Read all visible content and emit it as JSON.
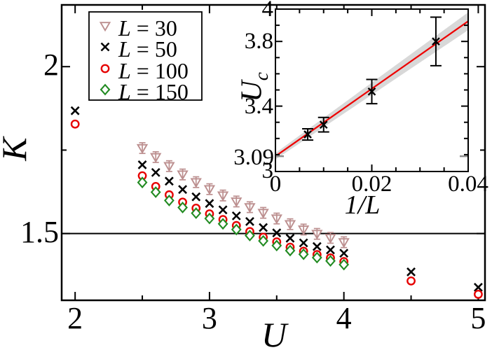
{
  "figure": {
    "description": "Luttinger parameter K versus interaction U for several system sizes L, with inset showing finite-size extrapolation of the critical point U_c versus 1/L"
  },
  "chart_data": [
    {
      "id": "main",
      "type": "scatter",
      "xlabel": "U",
      "ylabel": "K",
      "xlim": [
        1.9,
        5.05
      ],
      "ylim": [
        1.3,
        2.185
      ],
      "grid": false,
      "x_major_ticks": [
        2,
        3,
        4,
        5
      ],
      "x_minor_ticks": [
        2.5,
        3.5,
        4.5
      ],
      "y_major_ticks": [
        1.5,
        2
      ],
      "y_minor_ticks": [
        1.75
      ],
      "x_tick_label_values": [
        2,
        3,
        4,
        5
      ],
      "x_tick_labels": [
        "2",
        "3",
        "4",
        "5"
      ],
      "y_tick_label_values": [
        1.5,
        2
      ],
      "y_tick_labels": [
        "1.5",
        "2"
      ],
      "hline_y": 1.5,
      "legend": {
        "position": "top-left",
        "entries": [
          "L = 30",
          "L = 50",
          "L = 100",
          "L = 150"
        ]
      },
      "series": [
        {
          "name": "L = 30",
          "marker": "triangle-down",
          "color": "#bc8f8f",
          "yerr": 0.016,
          "x": [
            2.5,
            2.6,
            2.7,
            2.8,
            2.9,
            3.0,
            3.1,
            3.2,
            3.3,
            3.4,
            3.5,
            3.6,
            3.7,
            3.8,
            3.9,
            4.0
          ],
          "y": [
            1.756,
            1.729,
            1.702,
            1.677,
            1.654,
            1.633,
            1.614,
            1.596,
            1.579,
            1.562,
            1.545,
            1.528,
            1.512,
            1.499,
            1.487,
            1.474
          ]
        },
        {
          "name": "L = 50",
          "marker": "x",
          "color": "#000000",
          "x": [
            2.0,
            2.5,
            2.6,
            2.7,
            2.8,
            2.9,
            3.0,
            3.1,
            3.2,
            3.3,
            3.4,
            3.5,
            3.6,
            3.7,
            3.8,
            3.9,
            4.0,
            4.5,
            5.0
          ],
          "y": [
            1.868,
            1.706,
            1.683,
            1.657,
            1.632,
            1.61,
            1.59,
            1.571,
            1.553,
            1.536,
            1.518,
            1.502,
            1.486,
            1.472,
            1.461,
            1.451,
            1.441,
            1.385,
            1.339
          ]
        },
        {
          "name": "L = 100",
          "marker": "circle",
          "color": "#e60000",
          "x": [
            2.0,
            2.5,
            2.6,
            2.7,
            2.8,
            2.9,
            3.0,
            3.1,
            3.2,
            3.3,
            3.4,
            3.5,
            3.6,
            3.7,
            3.8,
            3.9,
            4.0,
            4.5,
            5.0
          ],
          "y": [
            1.828,
            1.673,
            1.641,
            1.616,
            1.594,
            1.576,
            1.559,
            1.542,
            1.524,
            1.506,
            1.489,
            1.475,
            1.459,
            1.447,
            1.437,
            1.427,
            1.416,
            1.358,
            1.318
          ]
        },
        {
          "name": "L = 150",
          "marker": "diamond",
          "color": "#228b22",
          "x": [
            2.5,
            2.6,
            2.7,
            2.8,
            2.9,
            3.0,
            3.1,
            3.2,
            3.3,
            3.4,
            3.5,
            3.6,
            3.7,
            3.8,
            3.9,
            4.0
          ],
          "y": [
            1.653,
            1.624,
            1.599,
            1.578,
            1.561,
            1.545,
            1.529,
            1.512,
            1.494,
            1.478,
            1.464,
            1.449,
            1.438,
            1.428,
            1.418,
            1.407
          ]
        }
      ]
    },
    {
      "id": "inset",
      "type": "scatter",
      "xlabel": "1/L",
      "ylabel": "U",
      "ylabel_sub": "c",
      "xlim": [
        0,
        0.04
      ],
      "ylim": [
        3,
        4
      ],
      "grid": false,
      "x_major_ticks": [
        0.02,
        0.04
      ],
      "x_minor_ticks": [
        0.005,
        0.01,
        0.015,
        0.025,
        0.03,
        0.035
      ],
      "y_major_ticks": [
        3.4,
        3.8
      ],
      "y_minor_ticks": [
        3.1,
        3.2,
        3.3,
        3.5,
        3.6,
        3.7,
        3.9
      ],
      "x_tick_label_values": [
        0,
        0.02,
        0.04
      ],
      "x_tick_labels": [
        "0",
        "0.02",
        "0.04"
      ],
      "y_tick_label_values": [
        3,
        3.4,
        3.8,
        4
      ],
      "y_tick_labels": [
        "3",
        "3.4",
        "3.8",
        "4"
      ],
      "intercept_label": "3.09",
      "intercept_value": 3.09,
      "points": {
        "name": "U_c(L)",
        "marker": "x",
        "color": "#000000",
        "x": [
          0.0067,
          0.01,
          0.02,
          0.0333
        ],
        "y": [
          3.225,
          3.285,
          3.49,
          3.8
        ],
        "yerr": [
          0.035,
          0.045,
          0.075,
          0.15
        ]
      },
      "fit_line": {
        "color": "#ee0000",
        "x": [
          0,
          0.04
        ],
        "y": [
          3.09,
          3.925
        ]
      },
      "confidence_band": {
        "color": "#d8d8d8",
        "half_width": [
          0.02,
          0.055
        ]
      }
    }
  ]
}
